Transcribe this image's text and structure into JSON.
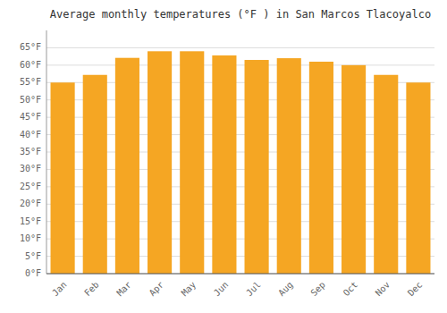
{
  "chart_data": {
    "type": "bar",
    "title": "Average monthly temperatures (°F ) in San Marcos Tlacoyalco",
    "categories": [
      "Jan",
      "Feb",
      "Mar",
      "Apr",
      "May",
      "Jun",
      "Jul",
      "Aug",
      "Sep",
      "Oct",
      "Nov",
      "Dec"
    ],
    "values": [
      55.0,
      57.2,
      62.1,
      64.0,
      64.0,
      62.8,
      61.5,
      62.0,
      61.0,
      60.0,
      57.2,
      55.0
    ],
    "color": "#F5A623",
    "ylim": [
      0,
      70
    ],
    "yticks": [
      {
        "value": 0,
        "label": "0°F"
      },
      {
        "value": 5,
        "label": "5°F"
      },
      {
        "value": 10,
        "label": "10°F"
      },
      {
        "value": 15,
        "label": "15°F"
      },
      {
        "value": 20,
        "label": "20°F"
      },
      {
        "value": 25,
        "label": "25°F"
      },
      {
        "value": 30,
        "label": "30°F"
      },
      {
        "value": 35,
        "label": "35°F"
      },
      {
        "value": 40,
        "label": "40°F"
      },
      {
        "value": 45,
        "label": "45°F"
      },
      {
        "value": 50,
        "label": "50°F"
      },
      {
        "value": 55,
        "label": "55°F"
      },
      {
        "value": 60,
        "label": "60°F"
      },
      {
        "value": 65,
        "label": "65°F"
      }
    ],
    "grid": true
  }
}
